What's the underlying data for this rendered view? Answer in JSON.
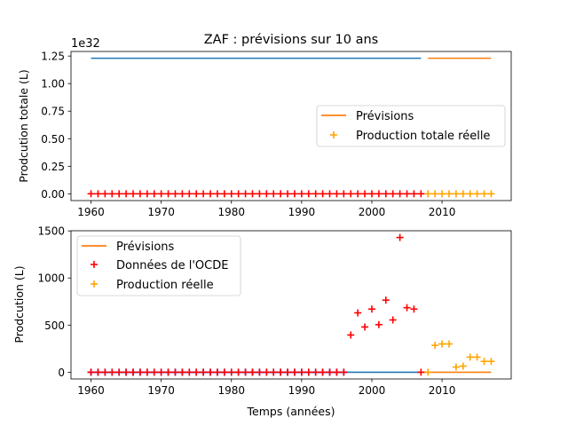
{
  "title": "ZAF : prévisions sur 10 ans",
  "chart_data": [
    {
      "type": "line",
      "title": "ZAF : prévisions sur 10 ans",
      "xlabel": "",
      "ylabel": "Prodcution totale (L)",
      "offset_label": "1e32",
      "xlim": [
        1957.15,
        2019.85
      ],
      "ylim": [
        -0.0615,
        1.2915
      ],
      "x_ticks": [
        1960,
        1970,
        1980,
        1990,
        2000,
        2010
      ],
      "y_ticks": [
        0.0,
        0.25,
        0.5,
        0.75,
        1.0,
        1.25
      ],
      "y_tick_labels": [
        "0.00",
        "0.25",
        "0.50",
        "0.75",
        "1.00",
        "1.25"
      ],
      "legend_position": "center-right",
      "colors": {
        "history": "#1f77b4",
        "forecast": "#ff7f0e",
        "actual": "#ffa500",
        "ocde": "#ff0000"
      },
      "series": [
        {
          "name": "",
          "kind": "line",
          "color": "#1f77b4",
          "x": [
            1960,
            2007
          ],
          "y": [
            1.23,
            1.23
          ]
        },
        {
          "name": "Prévisions",
          "kind": "line",
          "color": "#ff7f0e",
          "x": [
            2008,
            2017
          ],
          "y": [
            1.23,
            1.23
          ]
        },
        {
          "name": "",
          "kind": "plus",
          "color": "#ff0000",
          "x_range": [
            1960,
            2007
          ],
          "y": 0
        },
        {
          "name": "Production totale réelle",
          "kind": "plus",
          "color": "#ffa500",
          "x_range": [
            2008,
            2017
          ],
          "y": 0
        }
      ]
    },
    {
      "type": "scatter",
      "title": "",
      "xlabel": "Temps (années)",
      "ylabel": "Prodcution (L)",
      "xlim": [
        1957.15,
        2019.85
      ],
      "ylim": [
        -71.5,
        1501.5
      ],
      "x_ticks": [
        1960,
        1970,
        1980,
        1990,
        2000,
        2010
      ],
      "y_ticks": [
        0,
        500,
        1000,
        1500
      ],
      "y_tick_labels": [
        "0",
        "500",
        "1000",
        "1500"
      ],
      "legend_position": "upper-left",
      "series": [
        {
          "name": "",
          "kind": "line",
          "color": "#1f77b4",
          "x": [
            1960,
            2007
          ],
          "y": [
            0,
            0
          ]
        },
        {
          "name": "Prévisions",
          "kind": "line",
          "color": "#ff7f0e",
          "x": [
            2007,
            2017
          ],
          "y": [
            0,
            0
          ]
        },
        {
          "name": "",
          "kind": "plus",
          "color": "#0000ff",
          "x_range": [
            1960,
            1996
          ],
          "y": 0
        },
        {
          "name": "Données de l'OCDE",
          "kind": "plus",
          "color": "#ff0000",
          "x": [
            1960,
            1961,
            1962,
            1963,
            1964,
            1965,
            1966,
            1967,
            1968,
            1969,
            1970,
            1971,
            1972,
            1973,
            1974,
            1975,
            1976,
            1977,
            1978,
            1979,
            1980,
            1981,
            1982,
            1983,
            1984,
            1985,
            1986,
            1987,
            1988,
            1989,
            1990,
            1991,
            1992,
            1993,
            1994,
            1995,
            1996,
            1997,
            1998,
            1999,
            2000,
            2001,
            2002,
            2003,
            2004,
            2005,
            2006,
            2007
          ],
          "y": [
            0,
            0,
            0,
            0,
            0,
            0,
            0,
            0,
            0,
            0,
            0,
            0,
            0,
            0,
            0,
            0,
            0,
            0,
            0,
            0,
            0,
            0,
            0,
            0,
            0,
            0,
            0,
            0,
            0,
            0,
            0,
            0,
            0,
            0,
            0,
            0,
            0,
            395,
            630,
            480,
            670,
            505,
            765,
            555,
            1430,
            685,
            670,
            0
          ]
        },
        {
          "name": "Production réelle",
          "kind": "plus",
          "color": "#ffa500",
          "x": [
            2008,
            2009,
            2010,
            2011,
            2012,
            2013,
            2014,
            2015,
            2016,
            2017
          ],
          "y": [
            0,
            285,
            300,
            300,
            55,
            65,
            160,
            160,
            115,
            115
          ]
        }
      ]
    }
  ]
}
